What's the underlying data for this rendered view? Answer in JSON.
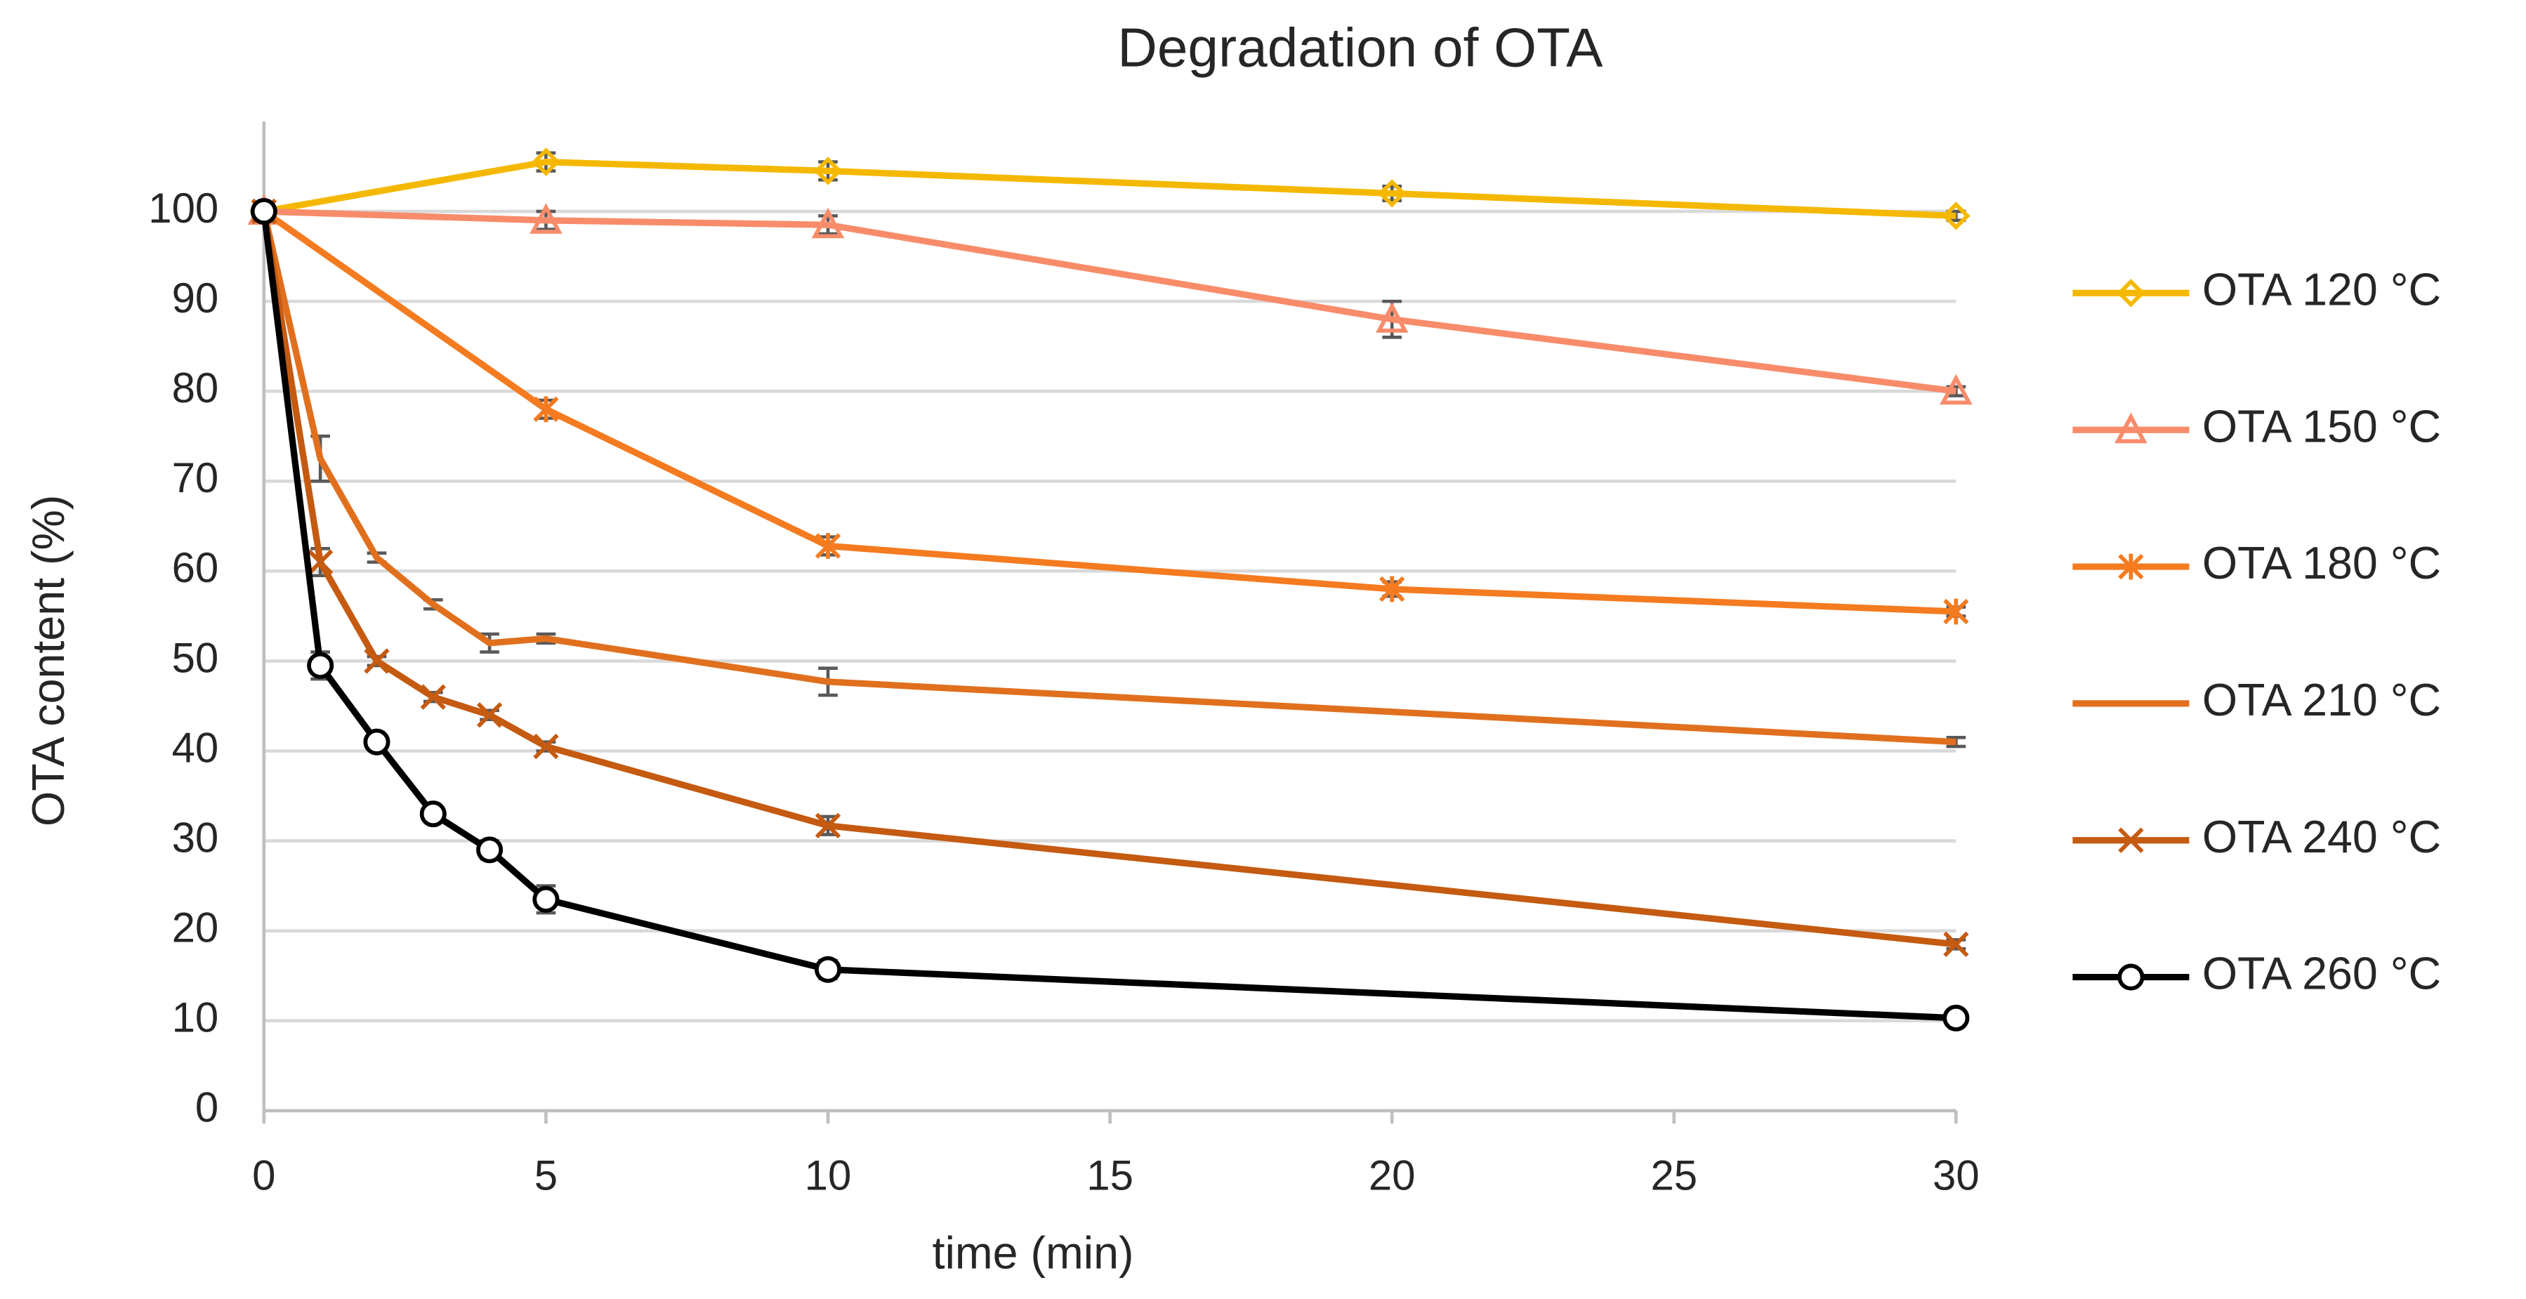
{
  "chart_data": {
    "type": "line",
    "title": "Degradation of OTA",
    "x_label": "time (min)",
    "y_label": "OTA content  (%)",
    "xlim": [
      0,
      30
    ],
    "xticks": [
      0,
      5,
      10,
      15,
      20,
      25,
      30
    ],
    "ylim": [
      0,
      110
    ],
    "yticks": [
      0,
      10,
      20,
      30,
      40,
      50,
      60,
      70,
      80,
      90,
      100
    ],
    "grid": true,
    "legend": "right",
    "series": [
      {
        "name": "OTA 120 °C",
        "color": "#f5b800",
        "marker": "diamond",
        "x": [
          0,
          5,
          10,
          20,
          30
        ],
        "values": [
          100,
          105.5,
          104.5,
          102,
          99.5
        ],
        "errors": [
          0.5,
          1,
          1,
          0.8,
          0.5
        ]
      },
      {
        "name": "OTA 150 °C",
        "color": "#f88c6a",
        "marker": "triangle",
        "x": [
          0,
          5,
          10,
          20,
          30
        ],
        "values": [
          100,
          99,
          98.5,
          88,
          80
        ],
        "errors": [
          0.5,
          1,
          1,
          2,
          0.5
        ]
      },
      {
        "name": "OTA 180 °C",
        "color": "#f47b20",
        "marker": "asterisk",
        "x": [
          0,
          5,
          10,
          20,
          30
        ],
        "values": [
          100,
          78,
          62.8,
          58,
          55.5
        ],
        "errors": [
          0.5,
          1,
          1,
          0.8,
          0.5
        ]
      },
      {
        "name": "OTA 210 °C",
        "color": "#e0701e",
        "marker": "none",
        "x": [
          0,
          1,
          2,
          3,
          4,
          5,
          10,
          30
        ],
        "values": [
          100,
          72.5,
          61.5,
          56.3,
          52,
          52.5,
          47.7,
          41
        ],
        "errors": [
          0.5,
          2.5,
          0.5,
          0.5,
          1,
          0.5,
          1.5,
          0.5
        ]
      },
      {
        "name": "OTA 240 °C",
        "color": "#c55a11",
        "marker": "x",
        "x": [
          0,
          1,
          2,
          3,
          4,
          5,
          10,
          30
        ],
        "values": [
          100,
          61,
          50,
          46,
          44,
          40.5,
          31.7,
          18.5
        ],
        "errors": [
          0.5,
          1.5,
          0.5,
          0.5,
          0.5,
          0.5,
          1,
          0.5
        ]
      },
      {
        "name": "OTA 260 °C",
        "color": "#000000",
        "marker": "circle",
        "x": [
          0,
          1,
          2,
          3,
          4,
          5,
          10,
          30
        ],
        "values": [
          100,
          49.5,
          41,
          33,
          29,
          23.5,
          15.7,
          10.3
        ],
        "errors": [
          0.5,
          1.5,
          0.5,
          0.5,
          1,
          1.5,
          1,
          0.5
        ]
      }
    ]
  }
}
